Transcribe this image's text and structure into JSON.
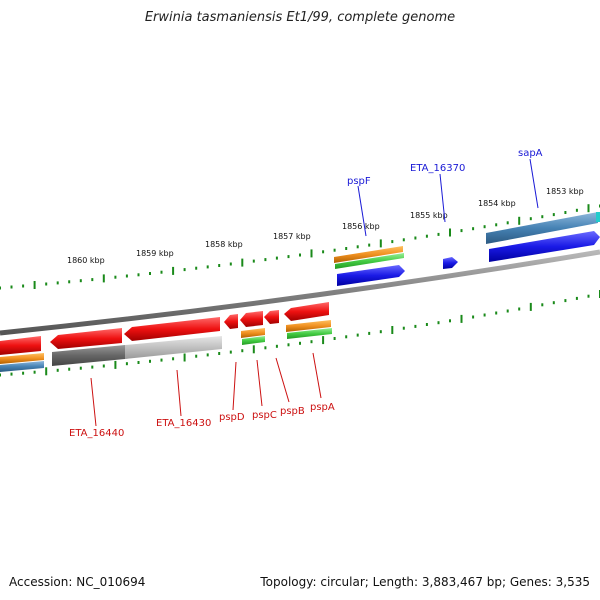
{
  "title": "Erwinia tasmaniensis Et1/99, complete genome",
  "footer": {
    "accession": "Accession: NC_010694",
    "summary": "Topology: circular; Length: 3,883,467 bp; Genes: 3,535"
  },
  "ticks": [
    "1853 kbp",
    "1854 kbp",
    "1855 kbp",
    "1856 kbp",
    "1857 kbp",
    "1858 kbp",
    "1859 kbp",
    "1860 kbp"
  ],
  "labels_top": [
    "sapA",
    "ETA_16370",
    "pspF"
  ],
  "labels_bottom": [
    "ETA_16440",
    "ETA_16430",
    "pspD",
    "pspC",
    "pspB",
    "pspA"
  ],
  "colors": {
    "backbone": "#808080",
    "cds_red": "#ee1111",
    "cds_grey_dark": "#666666",
    "cds_grey_light": "#c0c0c0",
    "orange": "#f09020",
    "green": "#44cc44",
    "blue": "#1a1ae6",
    "steel_blue": "#4682b4",
    "tick_green": "#1a8a1a",
    "label_blue": "#1a1ad6",
    "label_red": "#cc1111"
  }
}
